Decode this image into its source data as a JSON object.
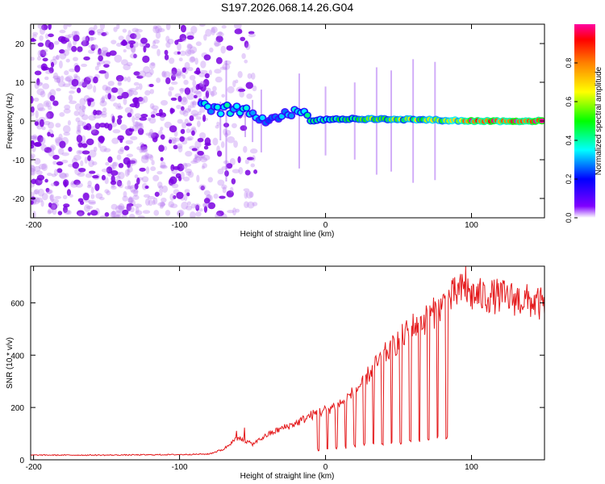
{
  "title": "S197.2026.068.14.26.G04",
  "chart_data": [
    {
      "type": "heatmap",
      "title": "S197.2026.068.14.26.G04",
      "xlabel": "Height of straight line (km)",
      "ylabel": "Frequency (Hz)",
      "xlim": [
        -202,
        150
      ],
      "ylim": [
        -25,
        25
      ],
      "xticks": [
        -200,
        -100,
        0,
        100
      ],
      "yticks": [
        -20,
        -10,
        0,
        10,
        20
      ],
      "colorbar": {
        "label": "Normalized spectral amplitude",
        "range": [
          0,
          1
        ],
        "ticks": [
          0.0,
          0.2,
          0.4,
          0.6,
          0.8
        ],
        "colormap": [
          "#ffffff",
          "#8000ff",
          "#0000ff",
          "#00ffff",
          "#00ff00",
          "#ffff00",
          "#ff8000",
          "#ff0000",
          "#ff00a0"
        ]
      },
      "features": {
        "noise_region_x": [
          -202,
          -48
        ],
        "tone_track_x": [
          -85,
          150
        ],
        "tone_frequency_hz": [
          [
            -85,
            3.5
          ],
          [
            -70,
            3.0
          ],
          [
            -60,
            3.0
          ],
          [
            -50,
            1.5
          ],
          [
            -40,
            0.5
          ],
          [
            -30,
            1.5
          ],
          [
            -20,
            3.0
          ],
          [
            -15,
            1.5
          ],
          [
            0,
            0.5
          ],
          [
            50,
            0.5
          ],
          [
            100,
            0.0
          ],
          [
            150,
            0.0
          ]
        ],
        "tone_amplitude": [
          [
            -85,
            0.35
          ],
          [
            -60,
            0.4
          ],
          [
            -40,
            0.3
          ],
          [
            -20,
            0.35
          ],
          [
            0,
            0.45
          ],
          [
            30,
            0.6
          ],
          [
            60,
            0.6
          ],
          [
            90,
            0.7
          ],
          [
            100,
            0.95
          ],
          [
            150,
            0.95
          ]
        ]
      }
    },
    {
      "type": "line",
      "xlabel": "Height of straight line (km)",
      "ylabel": "SNR (10 * v/v)",
      "xlim": [
        -202,
        150
      ],
      "ylim": [
        0,
        740
      ],
      "xticks": [
        -200,
        -100,
        0,
        100
      ],
      "yticks": [
        0,
        200,
        400,
        600
      ],
      "color": "#e41a1c",
      "series": [
        {
          "name": "SNR",
          "envelope_x": [
            -202,
            -150,
            -100,
            -80,
            -70,
            -60,
            -50,
            -40,
            -30,
            -20,
            -10,
            0,
            10,
            20,
            30,
            40,
            50,
            60,
            70,
            80,
            90,
            95,
            100,
            110,
            120,
            130,
            140,
            150
          ],
          "envelope_y": [
            18,
            18,
            20,
            22,
            40,
            85,
            60,
            95,
            120,
            140,
            170,
            190,
            215,
            260,
            330,
            400,
            455,
            510,
            540,
            590,
            640,
            650,
            630,
            625,
            625,
            615,
            605,
            590
          ],
          "dropout_level": [
            [
              -10,
              30
            ],
            [
              10,
              40
            ],
            [
              30,
              50
            ],
            [
              50,
              55
            ],
            [
              60,
              65
            ],
            [
              70,
              70
            ],
            [
              80,
              80
            ],
            [
              88,
              80
            ]
          ],
          "peak_value": 740
        }
      ]
    }
  ]
}
